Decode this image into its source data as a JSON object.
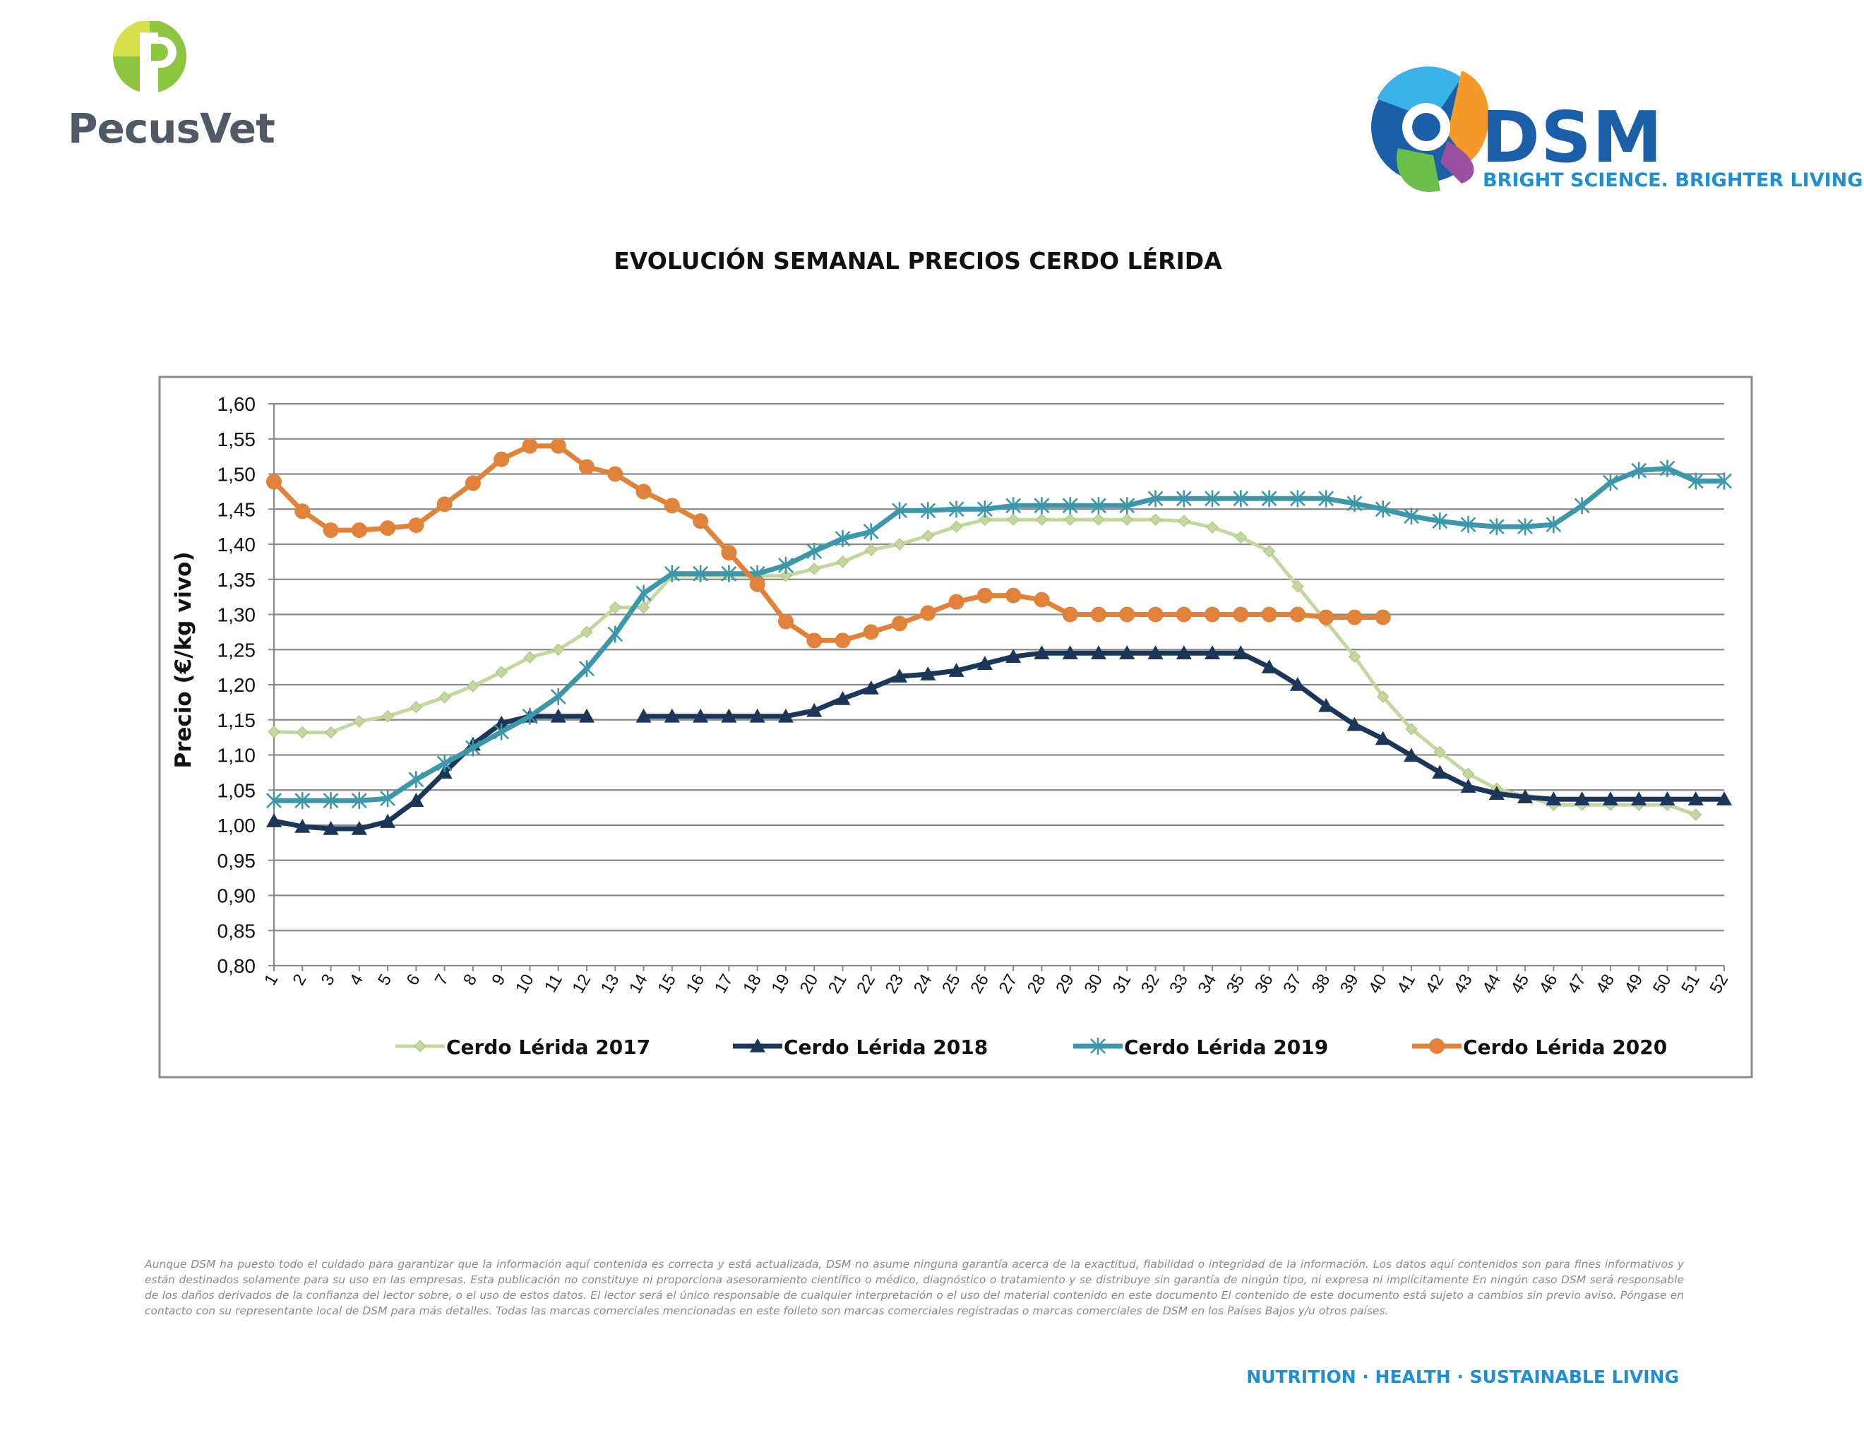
{
  "brand": {
    "pecusvet": "PecusVet",
    "dsm": "DSM",
    "dsm_tagline": "BRIGHT SCIENCE. BRIGHTER LIVING."
  },
  "chart_title": "EVOLUCIÓN SEMANAL PRECIOS CERDO LÉRIDA",
  "chart_data": {
    "type": "line",
    "title": "EVOLUCIÓN SEMANAL PRECIOS CERDO LÉRIDA",
    "xlabel": "",
    "ylabel": "Precio (€/kg vivo)",
    "ylim": [
      0.8,
      1.6
    ],
    "ystep": 0.05,
    "y_tick_labels": [
      "0,80",
      "0,85",
      "0,90",
      "0,95",
      "1,00",
      "1,05",
      "1,10",
      "1,15",
      "1,20",
      "1,25",
      "1,30",
      "1,35",
      "1,40",
      "1,45",
      "1,50",
      "1,55",
      "1,60"
    ],
    "x": [
      1,
      2,
      3,
      4,
      5,
      6,
      7,
      8,
      9,
      10,
      11,
      12,
      13,
      14,
      15,
      16,
      17,
      18,
      19,
      20,
      21,
      22,
      23,
      24,
      25,
      26,
      27,
      28,
      29,
      30,
      31,
      32,
      33,
      34,
      35,
      36,
      37,
      38,
      39,
      40,
      41,
      42,
      43,
      44,
      45,
      46,
      47,
      48,
      49,
      50,
      51,
      52
    ],
    "grid": true,
    "legend_position": "bottom",
    "series": [
      {
        "name": "Cerdo Lérida 2017",
        "color": "#c3d89e",
        "marker": "diamond",
        "values": [
          1.133,
          1.132,
          1.132,
          1.148,
          1.155,
          1.168,
          1.182,
          1.198,
          1.218,
          1.239,
          1.25,
          1.275,
          1.31,
          1.31,
          1.355,
          1.355,
          1.355,
          1.355,
          1.355,
          1.365,
          1.375,
          1.392,
          1.4,
          1.412,
          1.425,
          1.435,
          1.435,
          1.435,
          1.435,
          1.435,
          1.435,
          1.435,
          1.433,
          1.424,
          1.41,
          1.39,
          1.34,
          1.29,
          1.24,
          1.183,
          1.137,
          1.104,
          1.073,
          1.052,
          1.041,
          1.029,
          1.029,
          1.029,
          1.029,
          1.029,
          1.015,
          null
        ]
      },
      {
        "name": "Cerdo Lérida 2018",
        "color": "#1b3659",
        "marker": "triangle",
        "values": [
          1.006,
          0.998,
          0.995,
          0.995,
          1.005,
          1.035,
          1.075,
          1.115,
          1.145,
          1.155,
          1.155,
          1.155,
          null,
          1.155,
          1.155,
          1.155,
          1.155,
          1.155,
          1.155,
          1.163,
          1.18,
          1.195,
          1.212,
          1.215,
          1.22,
          1.23,
          1.24,
          1.245,
          1.245,
          1.245,
          1.245,
          1.245,
          1.245,
          1.245,
          1.245,
          1.225,
          1.2,
          1.17,
          1.143,
          1.123,
          1.099,
          1.075,
          1.055,
          1.045,
          1.04,
          1.037,
          1.037,
          1.037,
          1.037,
          1.037,
          1.037,
          1.037
        ]
      },
      {
        "name": "Cerdo Lérida 2019",
        "color": "#3c97ab",
        "marker": "star",
        "values": [
          1.035,
          1.035,
          1.035,
          1.035,
          1.038,
          1.065,
          1.088,
          1.11,
          1.133,
          1.155,
          1.183,
          1.223,
          1.272,
          1.33,
          1.358,
          1.358,
          1.358,
          1.358,
          1.37,
          1.39,
          1.408,
          1.418,
          1.448,
          1.448,
          1.45,
          1.45,
          1.455,
          1.455,
          1.455,
          1.455,
          1.455,
          1.465,
          1.465,
          1.465,
          1.465,
          1.465,
          1.465,
          1.465,
          1.458,
          1.45,
          1.44,
          1.433,
          1.428,
          1.425,
          1.425,
          1.428,
          1.455,
          1.488,
          1.505,
          1.508,
          1.49,
          1.49
        ]
      },
      {
        "name": "Cerdo Lérida 2020",
        "color": "#e0823a",
        "marker": "circle",
        "values": [
          1.489,
          1.447,
          1.42,
          1.42,
          1.423,
          1.427,
          1.457,
          1.487,
          1.521,
          1.54,
          1.54,
          1.51,
          1.5,
          1.475,
          1.455,
          1.433,
          1.388,
          1.343,
          1.29,
          1.263,
          1.263,
          1.275,
          1.287,
          1.302,
          1.318,
          1.327,
          1.327,
          1.321,
          1.3,
          1.3,
          1.3,
          1.3,
          1.3,
          1.3,
          1.3,
          1.3,
          1.3,
          1.296,
          1.296,
          1.296,
          null,
          null,
          null,
          null,
          null,
          null,
          null,
          null,
          null,
          null,
          null,
          null
        ]
      }
    ]
  },
  "disclaimer": "Aunque DSM ha puesto todo el cuidado para garantizar que la información aquí contenida es correcta y está actualizada, DSM no asume ninguna garantía acerca de la exactitud, fiabilidad o integridad de la información. Los datos aquí contenidos son para fines informativos y están destinados solamente para su uso en las empresas. Esta publicación no constituye ni proporciona asesoramiento científico o médico, diagnóstico o tratamiento y se distribuye sin garantía de ningún tipo, ni expresa ni implícitamente En ningún caso DSM será responsable de los daños derivados de la confianza del lector sobre, o el uso de estos datos. El lector será el único responsable de cualquier interpretación o el uso del material contenido en este documento El contenido de este documento está sujeto a cambios sin previo aviso. Póngase en contacto con su representante local de DSM para más detalles. Todas las marcas comerciales mencionadas en este folleto son marcas comerciales registradas o marcas comerciales de DSM en los Países Bajos y/u otros países.",
  "footer_tagline": "NUTRITION · HEALTH · SUSTAINABLE LIVING"
}
